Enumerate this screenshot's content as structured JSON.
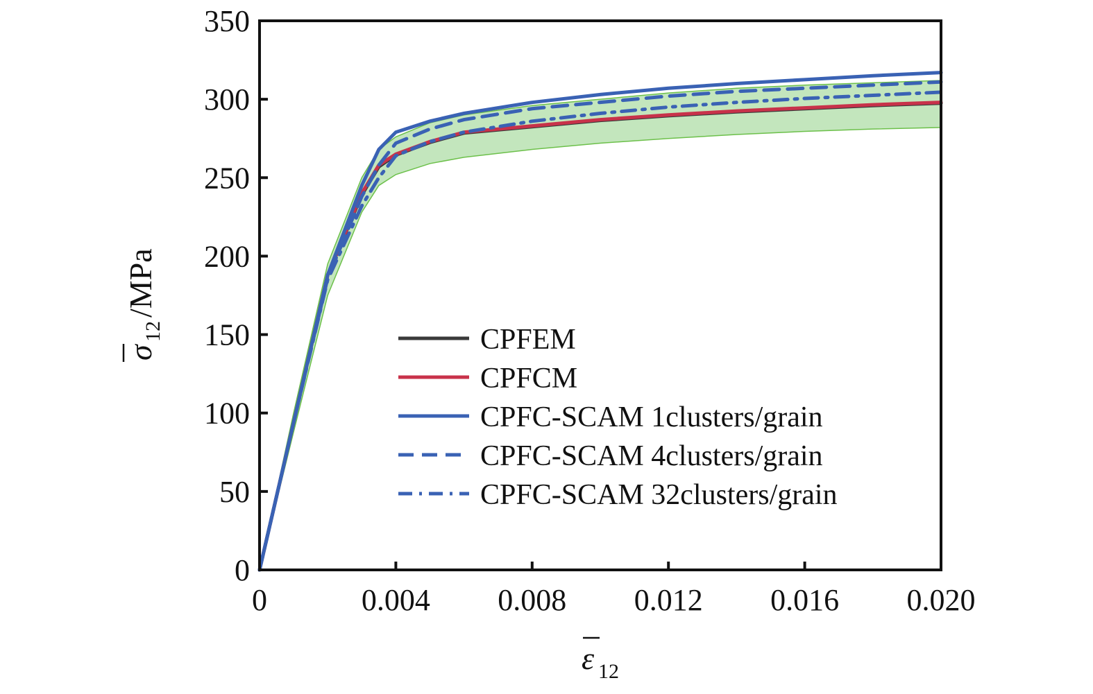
{
  "chart_data": {
    "type": "line",
    "title": "",
    "xlabel": "ε̄12",
    "xlabel_symbol": "ε",
    "xlabel_sub": "12",
    "ylabel_symbol": "σ",
    "ylabel_sub": "12",
    "ylabel_unit": "/MPa",
    "xlim": [
      0,
      0.02
    ],
    "ylim": [
      0,
      350
    ],
    "xticks": [
      "0",
      "0.004",
      "0.008",
      "0.012",
      "0.016",
      "0.020"
    ],
    "xtick_values": [
      0,
      0.004,
      0.008,
      0.012,
      0.016,
      0.02
    ],
    "yticks": [
      "0",
      "50",
      "100",
      "150",
      "200",
      "250",
      "300",
      "350"
    ],
    "ytick_values": [
      0,
      50,
      100,
      150,
      200,
      250,
      300,
      350
    ],
    "grid": false,
    "legend_placement": "center-right",
    "x": [
      0,
      0.001,
      0.002,
      0.003,
      0.0035,
      0.004,
      0.005,
      0.006,
      0.008,
      0.01,
      0.012,
      0.014,
      0.016,
      0.018,
      0.02
    ],
    "band": {
      "color": "#c3e6bd",
      "edge_color": "#6cc04a",
      "upper": [
        0,
        100,
        195,
        250,
        268,
        276,
        285,
        290,
        296,
        300,
        304,
        307,
        309,
        310.5,
        312
      ],
      "lower": [
        0,
        88,
        175,
        228,
        245,
        252,
        259,
        263,
        268,
        272,
        275,
        277.5,
        279.5,
        281,
        282
      ]
    },
    "series": [
      {
        "name": "CPFEM",
        "color": "#3a3a3a",
        "dash": "solid",
        "values": [
          0,
          94,
          188,
          239,
          257,
          264.5,
          272.5,
          278.5,
          282.5,
          286.5,
          289.5,
          292,
          294,
          296,
          297.5
        ]
      },
      {
        "name": "CPFCM",
        "color": "#c8324a",
        "dash": "solid",
        "values": [
          0,
          94,
          188,
          240,
          258,
          265,
          273,
          279,
          283,
          287,
          290,
          292.5,
          294.5,
          296.5,
          298
        ]
      },
      {
        "name": "CPFC-SCAM 1clusters/grain",
        "color": "#3a62b4",
        "dash": "solid",
        "values": [
          0,
          94,
          188,
          245,
          268,
          279,
          286,
          291,
          298,
          303,
          307,
          310,
          312.5,
          315,
          317
        ]
      },
      {
        "name": "CPFC-SCAM 4clusters/grain",
        "color": "#3a62b4",
        "dash": "dashed",
        "values": [
          0,
          94,
          186,
          238,
          258,
          272,
          281,
          287,
          294,
          298,
          302,
          305,
          307,
          309,
          311
        ]
      },
      {
        "name": "CPFC-SCAM 32clusters/grain",
        "color": "#3a62b4",
        "dash": "dashdot",
        "values": [
          0,
          94,
          185,
          232,
          250,
          264,
          273,
          279,
          286,
          291,
          295,
          298,
          300.5,
          302.5,
          304.5
        ]
      }
    ]
  }
}
